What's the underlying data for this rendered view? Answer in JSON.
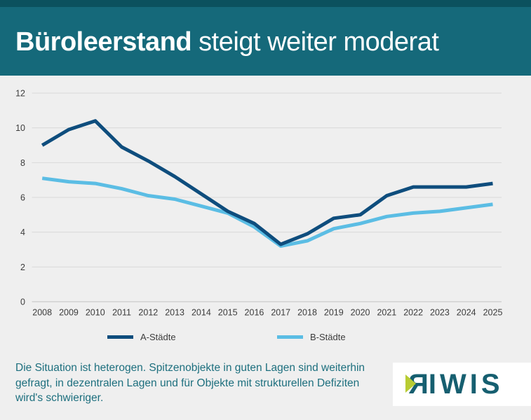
{
  "header": {
    "title_bold": "Büroleerstand",
    "title_rest": " steigt weiter moderat"
  },
  "chart_data": {
    "type": "line",
    "title": "Büroleerstand steigt weiter moderat",
    "xlabel": "",
    "ylabel": "",
    "categories": [
      "2008",
      "2009",
      "2010",
      "2011",
      "2012",
      "2013",
      "2014",
      "2015",
      "2016",
      "2017",
      "2018",
      "2019",
      "2020",
      "2021",
      "2022",
      "2023",
      "2024",
      "2025"
    ],
    "series": [
      {
        "name": "A-Städte",
        "color": "#0e4d7d",
        "values": [
          9.0,
          9.9,
          10.4,
          8.9,
          8.1,
          7.2,
          6.2,
          5.2,
          4.5,
          3.3,
          3.9,
          4.8,
          5.0,
          6.1,
          6.6,
          6.6,
          6.6,
          6.8
        ]
      },
      {
        "name": "B-Städte",
        "color": "#5bbde4",
        "values": [
          7.1,
          6.9,
          6.8,
          6.5,
          6.1,
          5.9,
          5.5,
          5.1,
          4.3,
          3.2,
          3.5,
          4.2,
          4.5,
          4.9,
          5.1,
          5.2,
          5.4,
          5.6
        ]
      }
    ],
    "ylim": [
      0,
      12
    ],
    "yticks": [
      0,
      2,
      4,
      6,
      8,
      10,
      12
    ],
    "grid": "horizontal",
    "legend_position": "bottom"
  },
  "footer": {
    "lines": [
      "Die Situation ist heterogen. Spitzenobjekte in guten Lagen sind weiterhin",
      "gefragt, in dezentralen Lagen und für Objekte mit strukturellen Defiziten",
      "wird's schwieriger."
    ]
  },
  "logo": {
    "letter_r": "R",
    "rest": "IWIS"
  },
  "colors": {
    "header_bg": "#15697a",
    "header_top_strip": "#0b515e",
    "page_bg": "#efefef",
    "footer_text": "#1d6f7e",
    "gridline": "#d9d9d9",
    "axis_line": "#c2c2c2",
    "tick_text": "#3c3c3c",
    "logo_teal": "#165f70",
    "logo_green": "#b8cc33",
    "logo_bg": "#ffffff"
  }
}
